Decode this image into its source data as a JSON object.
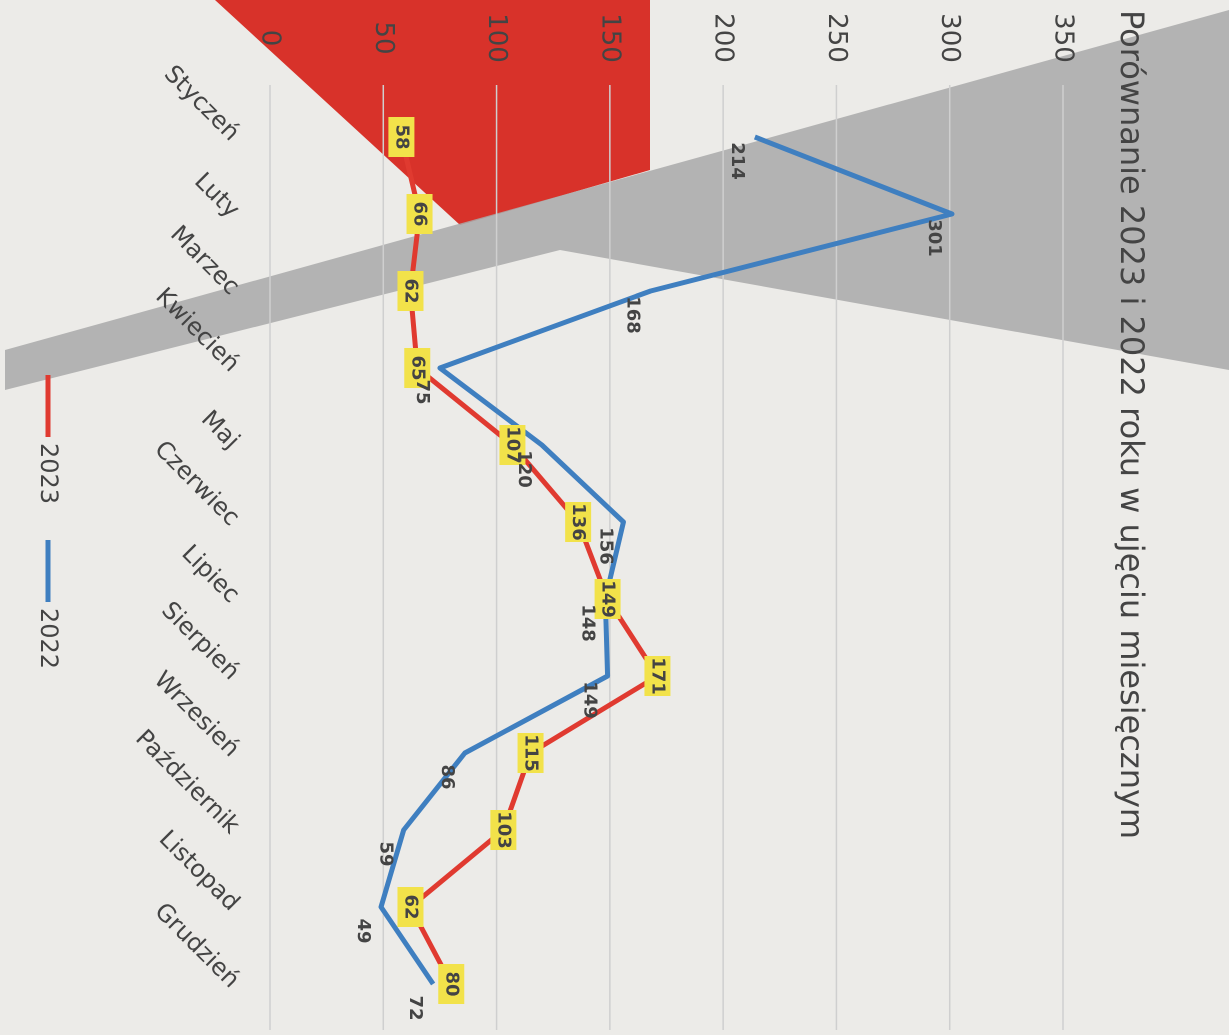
{
  "chart_data": {
    "type": "line",
    "title": "Porównanie 2023 i 2022 roku w ujęciu miesięcznym",
    "categories": [
      "Styczeń",
      "Luty",
      "Marzec",
      "Kwiecień",
      "Maj",
      "Czerwiec",
      "Lipiec",
      "Sierpień",
      "Wrzesień",
      "Październik",
      "Listopad",
      "Grudzień"
    ],
    "series": [
      {
        "name": "2023",
        "color": "#e03a30",
        "values": [
          58,
          66,
          62,
          65,
          107,
          136,
          149,
          171,
          115,
          103,
          62,
          80
        ]
      },
      {
        "name": "2022",
        "color": "#3f7fc0",
        "values": [
          214,
          301,
          168,
          75,
          120,
          156,
          148,
          149,
          86,
          59,
          49,
          72
        ]
      }
    ],
    "ylim": [
      0,
      350
    ],
    "yticks": [
      0,
      50,
      100,
      150,
      200,
      250,
      300,
      350
    ],
    "grid": true
  }
}
